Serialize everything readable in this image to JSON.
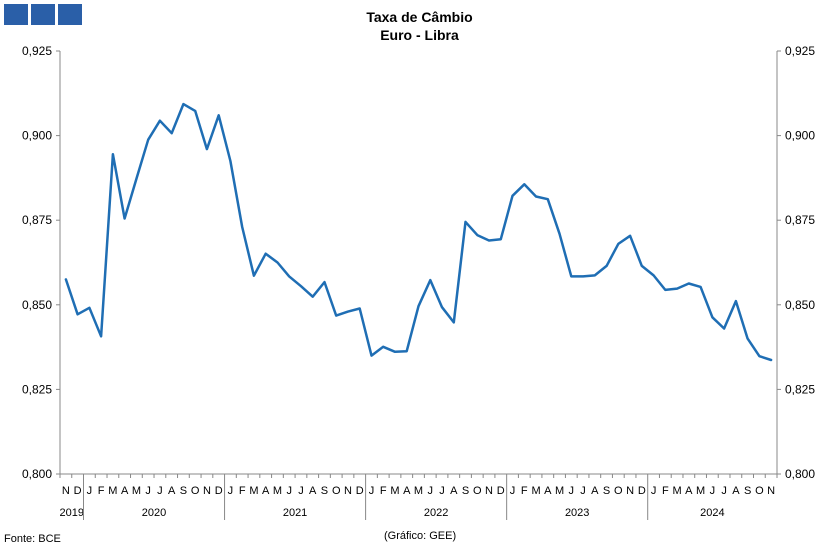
{
  "logo": {
    "icon": "logo-squares-icon",
    "color": "#2a5fa8"
  },
  "chart_data": {
    "type": "line",
    "title": "Taxa de Câmbio",
    "subtitle": "Euro - Libra",
    "source": "Fonte: BCE",
    "credit": "(Gráfico: GEE)",
    "ylim": [
      0.8,
      0.925
    ],
    "yticks": [
      "0,800",
      "0,825",
      "0,850",
      "0,875",
      "0,900",
      "0,925"
    ],
    "grid": false,
    "line_color": "#1f6eb4",
    "months": [
      "N",
      "D",
      "J",
      "F",
      "M",
      "A",
      "M",
      "J",
      "J",
      "A",
      "S",
      "O",
      "N",
      "D",
      "J",
      "F",
      "M",
      "A",
      "M",
      "J",
      "J",
      "A",
      "S",
      "O",
      "N",
      "D",
      "J",
      "F",
      "M",
      "A",
      "M",
      "J",
      "J",
      "A",
      "S",
      "O",
      "N",
      "D",
      "J",
      "F",
      "M",
      "A",
      "M",
      "J",
      "J",
      "A",
      "S",
      "O",
      "N",
      "D",
      "J",
      "F",
      "M",
      "A",
      "M",
      "J",
      "J",
      "A",
      "S",
      "O",
      "N"
    ],
    "years": [
      {
        "label": "2019",
        "start": 0,
        "end": 1
      },
      {
        "label": "2020",
        "start": 2,
        "end": 13
      },
      {
        "label": "2021",
        "start": 14,
        "end": 25
      },
      {
        "label": "2022",
        "start": 26,
        "end": 37
      },
      {
        "label": "2023",
        "start": 38,
        "end": 49
      },
      {
        "label": "2024",
        "start": 50,
        "end": 60
      }
    ],
    "series": [
      {
        "values": [
          0.8575,
          0.8472,
          0.8491,
          0.8407,
          0.8945,
          0.8755,
          0.8872,
          0.8988,
          0.9044,
          0.9007,
          0.9093,
          0.9073,
          0.896,
          0.906,
          0.8925,
          0.873,
          0.8586,
          0.8651,
          0.8625,
          0.8584,
          0.8555,
          0.8524,
          0.8567,
          0.8468,
          0.848,
          0.8489,
          0.835,
          0.8376,
          0.8361,
          0.8363,
          0.8496,
          0.8573,
          0.8493,
          0.8448,
          0.8745,
          0.8706,
          0.869,
          0.8694,
          0.8822,
          0.8856,
          0.882,
          0.8812,
          0.871,
          0.8584,
          0.8584,
          0.8587,
          0.8615,
          0.868,
          0.8704,
          0.8615,
          0.8587,
          0.8544,
          0.8548,
          0.8563,
          0.8553,
          0.8463,
          0.843,
          0.8511,
          0.84,
          0.8348,
          0.8337
        ]
      }
    ]
  }
}
